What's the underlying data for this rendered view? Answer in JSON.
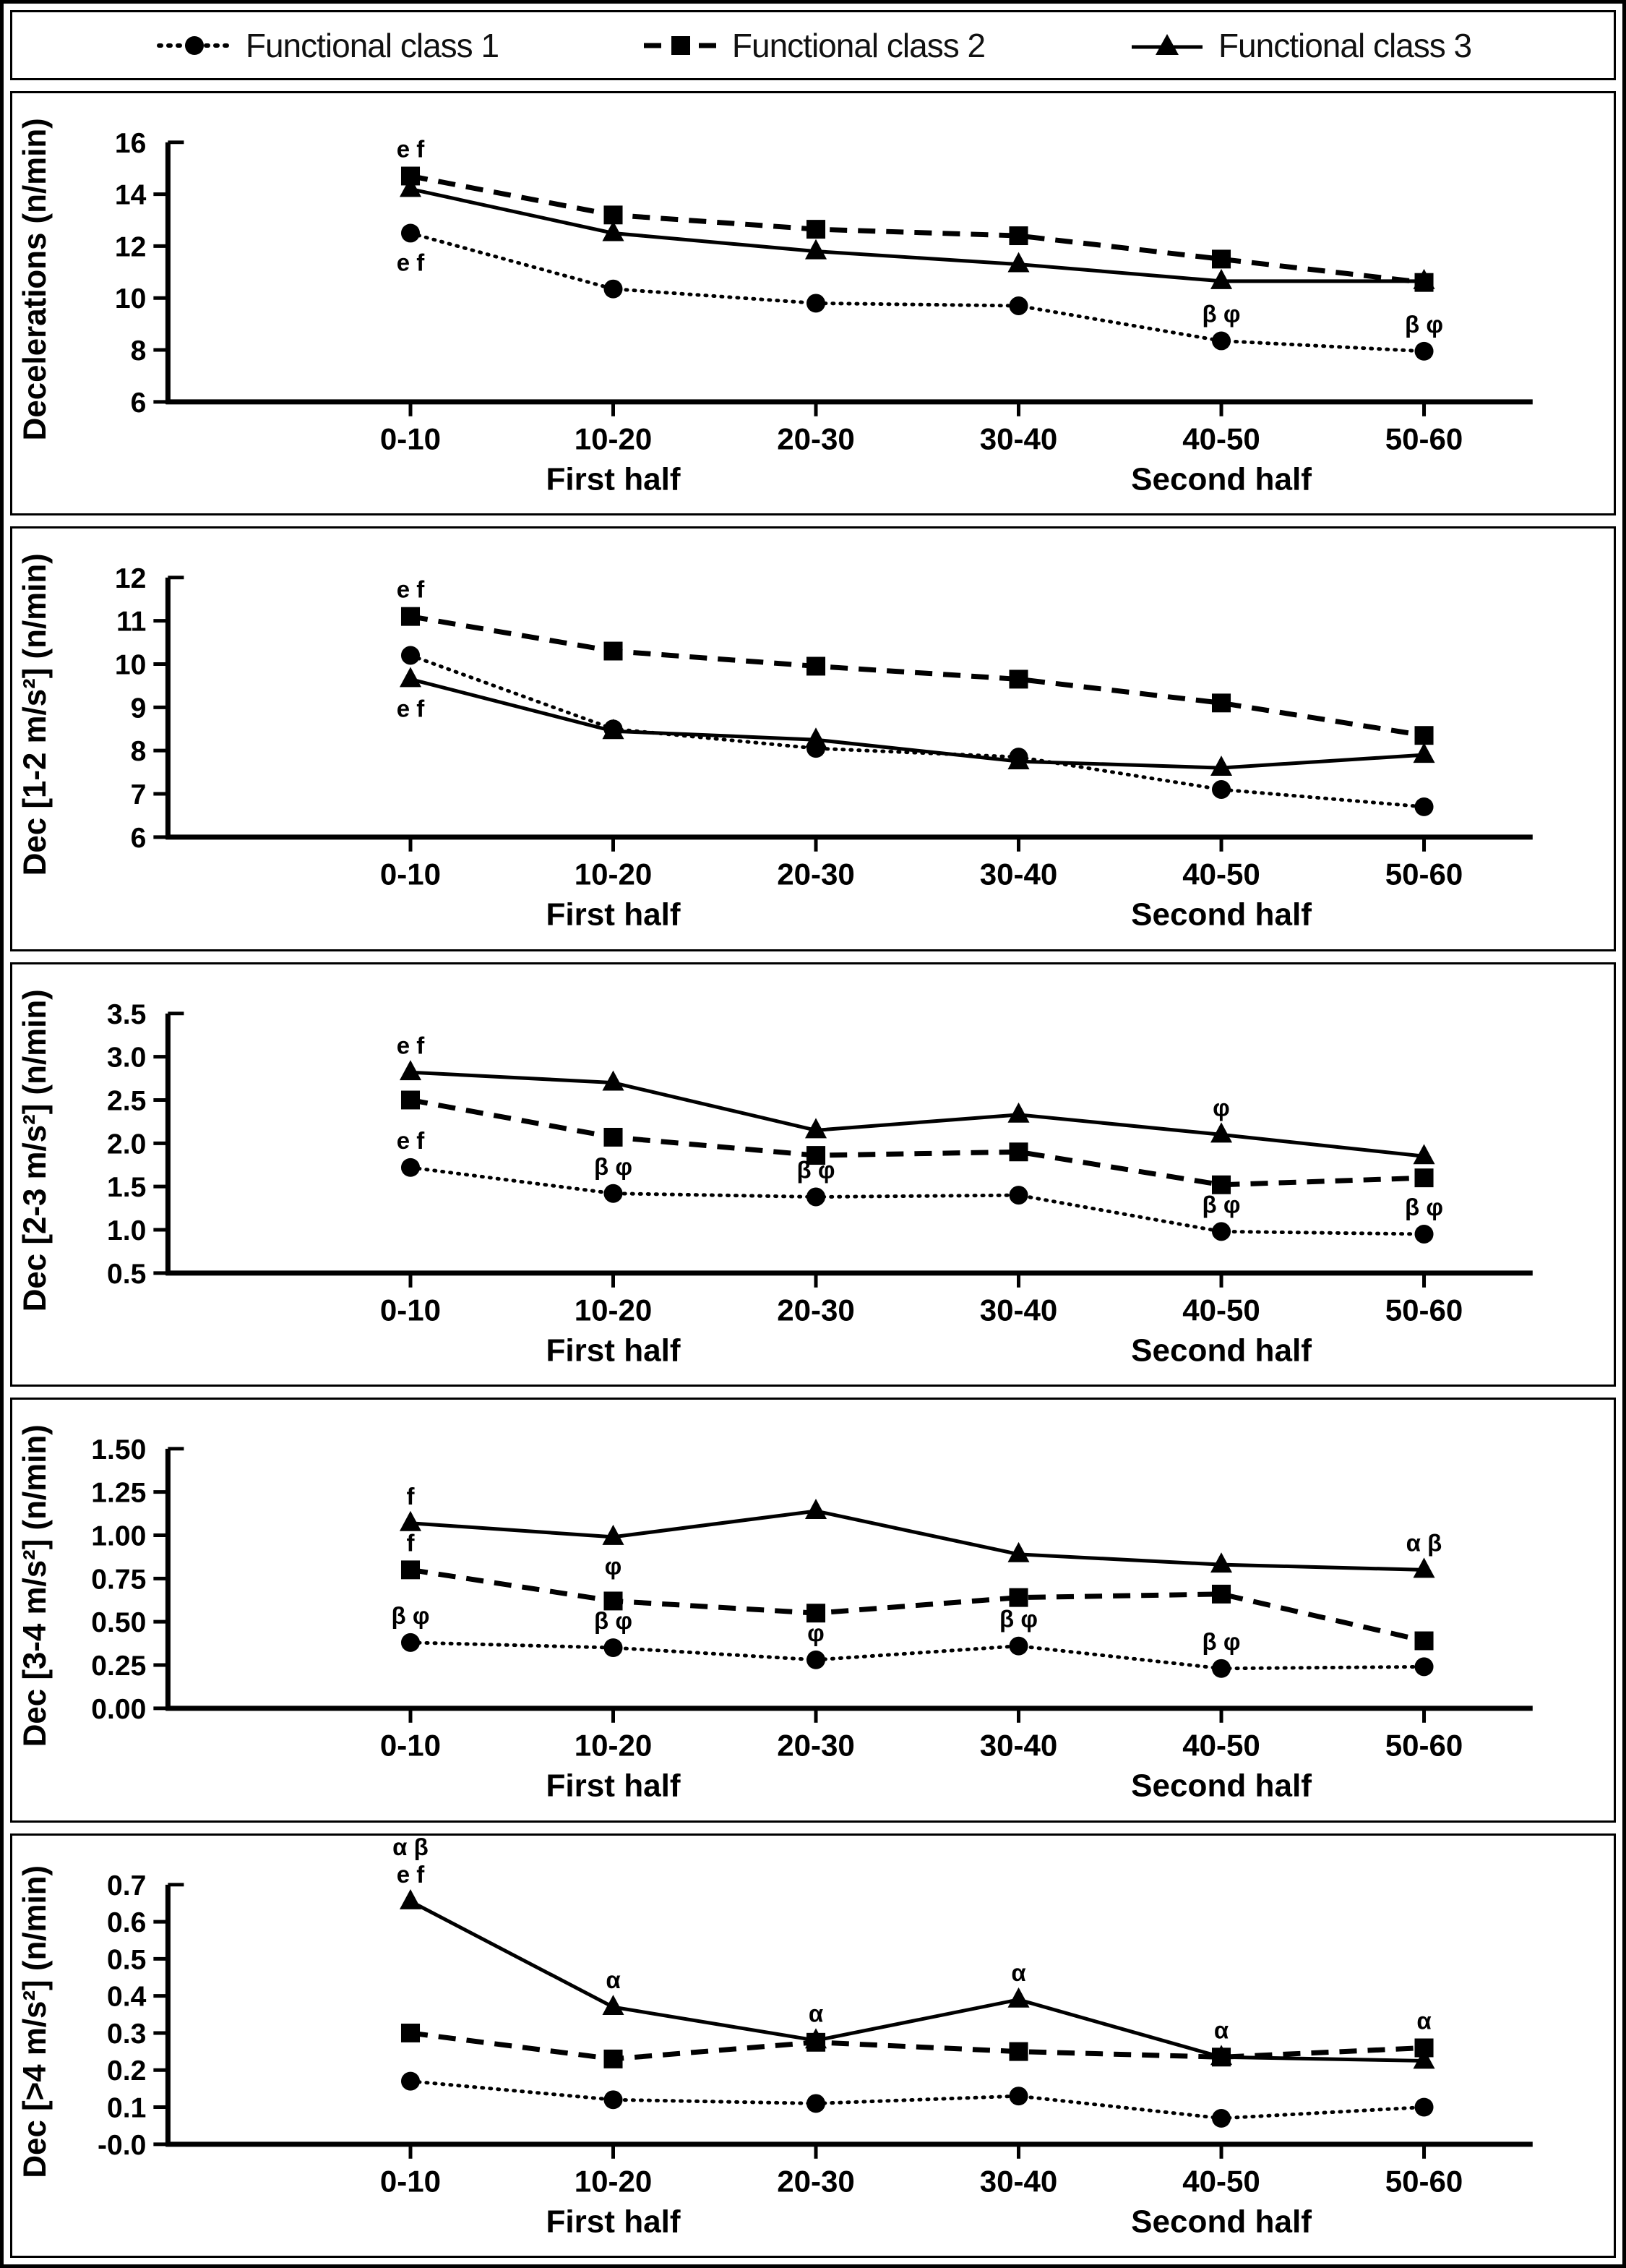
{
  "legend": {
    "position": "top",
    "items": [
      {
        "label": "Functional class 1",
        "marker": "circle",
        "line": "dotted"
      },
      {
        "label": "Functional class 2",
        "marker": "square",
        "line": "dashed"
      },
      {
        "label": "Functional class 3",
        "marker": "triangle",
        "line": "solid"
      }
    ]
  },
  "chart_data": [
    {
      "type": "line",
      "ylabel": "Decelerations (n/min)",
      "ylim": [
        6,
        16
      ],
      "ytick_step": 2,
      "ytick_decimals": 0,
      "categories": [
        "0-10",
        "10-20",
        "20-30",
        "30-40",
        "40-50",
        "50-60"
      ],
      "xgroups": [
        {
          "label": "First half",
          "tick": 1
        },
        {
          "label": "Second half",
          "tick": 4
        }
      ],
      "series": [
        {
          "name": "Functional class 1",
          "values": [
            12.5,
            10.35,
            9.8,
            9.7,
            8.35,
            7.95
          ]
        },
        {
          "name": "Functional class 2",
          "values": [
            14.7,
            13.2,
            12.65,
            12.4,
            11.5,
            10.6
          ]
        },
        {
          "name": "Functional class 3",
          "values": [
            14.2,
            12.5,
            11.8,
            11.3,
            10.65,
            10.65
          ]
        }
      ],
      "annotations": [
        {
          "text": "e f",
          "series": 1,
          "point": 0,
          "pos": "above"
        },
        {
          "text": "e f",
          "series": 0,
          "point": 0,
          "pos": "below"
        },
        {
          "text": "β φ",
          "series": 0,
          "point": 4,
          "pos": "above"
        },
        {
          "text": "β φ",
          "series": 0,
          "point": 5,
          "pos": "above"
        }
      ]
    },
    {
      "type": "line",
      "ylabel": "Dec [1-2 m/s²] (n/min)",
      "ylim": [
        6,
        12
      ],
      "ytick_step": 1,
      "ytick_decimals": 0,
      "categories": [
        "0-10",
        "10-20",
        "20-30",
        "30-40",
        "40-50",
        "50-60"
      ],
      "xgroups": [
        {
          "label": "First half",
          "tick": 1
        },
        {
          "label": "Second half",
          "tick": 4
        }
      ],
      "series": [
        {
          "name": "Functional class 1",
          "values": [
            10.2,
            8.5,
            8.05,
            7.85,
            7.1,
            6.7
          ]
        },
        {
          "name": "Functional class 2",
          "values": [
            11.1,
            10.3,
            9.95,
            9.65,
            9.1,
            8.35
          ]
        },
        {
          "name": "Functional class 3",
          "values": [
            9.65,
            8.45,
            8.25,
            7.75,
            7.6,
            7.9
          ]
        }
      ],
      "annotations": [
        {
          "text": "e f",
          "series": 1,
          "point": 0,
          "pos": "above"
        },
        {
          "text": "e f",
          "series": 2,
          "point": 0,
          "pos": "below"
        }
      ]
    },
    {
      "type": "line",
      "ylabel": "Dec [2-3 m/s²] (n/min)",
      "ylim": [
        0.5,
        3.5
      ],
      "ytick_step": 0.5,
      "ytick_decimals": 1,
      "categories": [
        "0-10",
        "10-20",
        "20-30",
        "30-40",
        "40-50",
        "50-60"
      ],
      "xgroups": [
        {
          "label": "First half",
          "tick": 1
        },
        {
          "label": "Second half",
          "tick": 4
        }
      ],
      "series": [
        {
          "name": "Functional class 1",
          "values": [
            1.72,
            1.42,
            1.38,
            1.4,
            0.98,
            0.95
          ]
        },
        {
          "name": "Functional class 2",
          "values": [
            2.5,
            2.07,
            1.86,
            1.9,
            1.52,
            1.6
          ]
        },
        {
          "name": "Functional class 3",
          "values": [
            2.82,
            2.7,
            2.15,
            2.33,
            2.1,
            1.85
          ]
        }
      ],
      "annotations": [
        {
          "text": "e f",
          "series": 2,
          "point": 0,
          "pos": "above"
        },
        {
          "text": "e f",
          "series": 0,
          "point": 0,
          "pos": "above"
        },
        {
          "text": "β φ",
          "series": 0,
          "point": 1,
          "pos": "above"
        },
        {
          "text": "β φ",
          "series": 0,
          "point": 2,
          "pos": "above"
        },
        {
          "text": "φ",
          "series": 2,
          "point": 4,
          "pos": "above"
        },
        {
          "text": "β φ",
          "series": 0,
          "point": 4,
          "pos": "above"
        },
        {
          "text": "β φ",
          "series": 0,
          "point": 5,
          "pos": "above"
        }
      ]
    },
    {
      "type": "line",
      "ylabel": "Dec [3-4 m/s²] (n/min)",
      "ylim": [
        0,
        1.5
      ],
      "ytick_step": 0.25,
      "ytick_decimals": 2,
      "categories": [
        "0-10",
        "10-20",
        "20-30",
        "30-40",
        "40-50",
        "50-60"
      ],
      "xgroups": [
        {
          "label": "First half",
          "tick": 1
        },
        {
          "label": "Second half",
          "tick": 4
        }
      ],
      "series": [
        {
          "name": "Functional class 1",
          "values": [
            0.38,
            0.35,
            0.28,
            0.36,
            0.23,
            0.24
          ]
        },
        {
          "name": "Functional class 2",
          "values": [
            0.8,
            0.62,
            0.55,
            0.64,
            0.66,
            0.39
          ]
        },
        {
          "name": "Functional class 3",
          "values": [
            1.07,
            0.99,
            1.14,
            0.89,
            0.83,
            0.8
          ]
        }
      ],
      "annotations": [
        {
          "text": "f",
          "series": 2,
          "point": 0,
          "pos": "above"
        },
        {
          "text": "f",
          "series": 1,
          "point": 0,
          "pos": "above"
        },
        {
          "text": "β φ",
          "series": 0,
          "point": 0,
          "pos": "above"
        },
        {
          "text": "φ",
          "series": 2,
          "point": 1,
          "pos": "below"
        },
        {
          "text": "β φ",
          "series": 0,
          "point": 1,
          "pos": "above"
        },
        {
          "text": "φ",
          "series": 0,
          "point": 2,
          "pos": "above"
        },
        {
          "text": "β φ",
          "series": 0,
          "point": 3,
          "pos": "above"
        },
        {
          "text": "β φ",
          "series": 0,
          "point": 4,
          "pos": "above"
        },
        {
          "text": "α β",
          "series": 2,
          "point": 5,
          "pos": "above"
        }
      ]
    },
    {
      "type": "line",
      "ylabel": "Dec [>4 m/s²] (n/min)",
      "ylim": [
        0,
        0.7
      ],
      "ytick_step": 0.1,
      "ytick_decimals": 1,
      "categories": [
        "0-10",
        "10-20",
        "20-30",
        "30-40",
        "40-50",
        "50-60"
      ],
      "xgroups": [
        {
          "label": "First half",
          "tick": 1
        },
        {
          "label": "Second half",
          "tick": 4
        }
      ],
      "series": [
        {
          "name": "Functional class 1",
          "values": [
            0.17,
            0.12,
            0.11,
            0.13,
            0.07,
            0.1
          ]
        },
        {
          "name": "Functional class 2",
          "values": [
            0.3,
            0.23,
            0.275,
            0.25,
            0.235,
            0.26
          ]
        },
        {
          "name": "Functional class 3",
          "values": [
            0.655,
            0.37,
            0.28,
            0.39,
            0.235,
            0.225
          ]
        }
      ],
      "annotations": [
        {
          "text": "α β",
          "series": 2,
          "point": 0,
          "pos": "above2"
        },
        {
          "text": "e f",
          "series": 2,
          "point": 0,
          "pos": "above"
        },
        {
          "text": "α",
          "series": 2,
          "point": 1,
          "pos": "above"
        },
        {
          "text": "α",
          "series": 2,
          "point": 2,
          "pos": "above"
        },
        {
          "text": "α",
          "series": 2,
          "point": 3,
          "pos": "above"
        },
        {
          "text": "α",
          "series": 1,
          "point": 4,
          "pos": "above"
        },
        {
          "text": "α",
          "series": 1,
          "point": 5,
          "pos": "above"
        }
      ]
    }
  ]
}
